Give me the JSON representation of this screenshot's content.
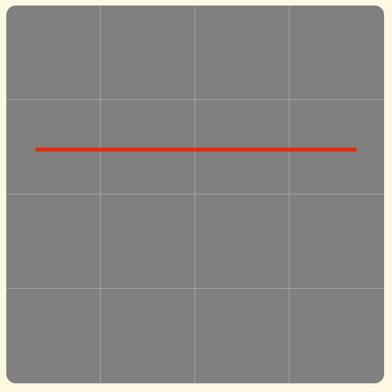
{
  "board": {
    "rows": 4,
    "cols": 4,
    "colors": {
      "background": "#fdf8e2",
      "board": "#808080",
      "grid_line": "#a3a3a3",
      "mark_line": "#e8290b"
    },
    "line": {
      "row": 1,
      "from_col": 0,
      "to_col": 3
    }
  }
}
